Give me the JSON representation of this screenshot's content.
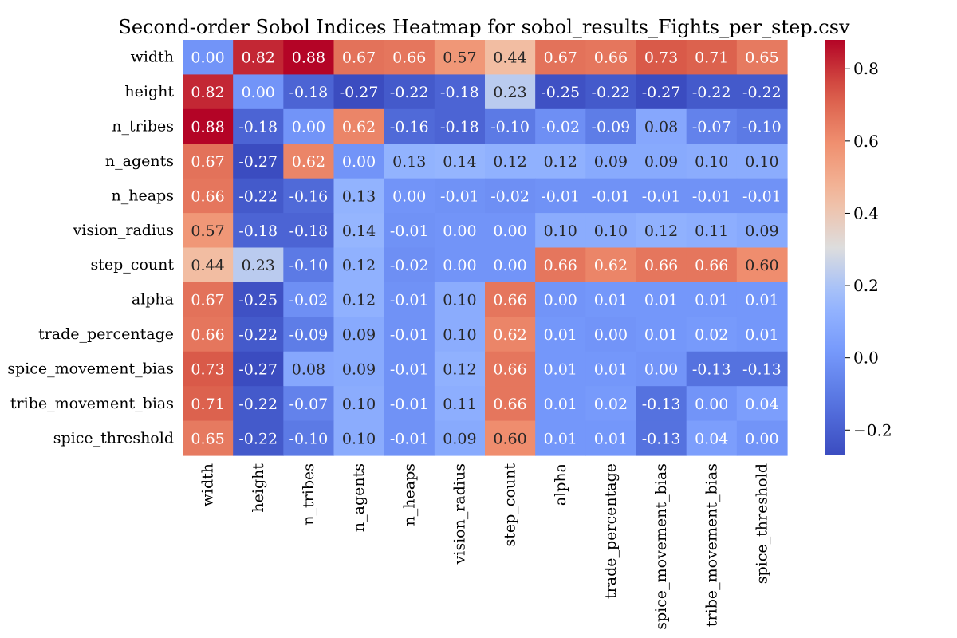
{
  "chart_data": {
    "type": "heatmap",
    "title": "Second-order Sobol Indices Heatmap for sobol_results_Fights_per_step.csv",
    "xlabel": "",
    "ylabel": "",
    "rows": [
      "width",
      "height",
      "n_tribes",
      "n_agents",
      "n_heaps",
      "vision_radius",
      "step_count",
      "alpha",
      "trade_percentage",
      "spice_movement_bias",
      "tribe_movement_bias",
      "spice_threshold"
    ],
    "columns": [
      "width",
      "height",
      "n_tribes",
      "n_agents",
      "n_heaps",
      "vision_radius",
      "step_count",
      "alpha",
      "trade_percentage",
      "spice_movement_bias",
      "tribe_movement_bias",
      "spice_threshold"
    ],
    "values": [
      [
        0.0,
        0.82,
        0.88,
        0.67,
        0.66,
        0.57,
        0.44,
        0.67,
        0.66,
        0.73,
        0.71,
        0.65
      ],
      [
        0.82,
        0.0,
        -0.18,
        -0.27,
        -0.22,
        -0.18,
        0.23,
        -0.25,
        -0.22,
        -0.27,
        -0.22,
        -0.22
      ],
      [
        0.88,
        -0.18,
        0.0,
        0.62,
        -0.16,
        -0.18,
        -0.1,
        -0.02,
        -0.09,
        0.08,
        -0.07,
        -0.1
      ],
      [
        0.67,
        -0.27,
        0.62,
        0.0,
        0.13,
        0.14,
        0.12,
        0.12,
        0.09,
        0.09,
        0.1,
        0.1
      ],
      [
        0.66,
        -0.22,
        -0.16,
        0.13,
        0.0,
        -0.01,
        -0.02,
        -0.01,
        -0.01,
        -0.01,
        -0.01,
        -0.01
      ],
      [
        0.57,
        -0.18,
        -0.18,
        0.14,
        -0.01,
        0.0,
        0.0,
        0.1,
        0.1,
        0.12,
        0.11,
        0.09
      ],
      [
        0.44,
        0.23,
        -0.1,
        0.12,
        -0.02,
        0.0,
        0.0,
        0.66,
        0.62,
        0.66,
        0.66,
        0.6
      ],
      [
        0.67,
        -0.25,
        -0.02,
        0.12,
        -0.01,
        0.1,
        0.66,
        0.0,
        0.01,
        0.01,
        0.01,
        0.01
      ],
      [
        0.66,
        -0.22,
        -0.09,
        0.09,
        -0.01,
        0.1,
        0.62,
        0.01,
        0.0,
        0.01,
        0.02,
        0.01
      ],
      [
        0.73,
        -0.27,
        0.08,
        0.09,
        -0.01,
        0.12,
        0.66,
        0.01,
        0.01,
        0.0,
        -0.13,
        -0.13
      ],
      [
        0.71,
        -0.22,
        -0.07,
        0.1,
        -0.01,
        0.11,
        0.66,
        0.01,
        0.02,
        -0.13,
        0.0,
        0.04
      ],
      [
        0.65,
        -0.22,
        -0.1,
        0.1,
        -0.01,
        0.09,
        0.6,
        0.01,
        0.01,
        -0.13,
        0.04,
        0.0
      ]
    ],
    "colormap": "coolwarm",
    "vmin": -0.27,
    "vmax": 0.88,
    "colorbar_ticks": [
      -0.2,
      0.0,
      0.2,
      0.4,
      0.6,
      0.8
    ],
    "colorbar_tick_labels": [
      "−0.2",
      "0.0",
      "0.2",
      "0.4",
      "0.6",
      "0.8"
    ],
    "annotations": true,
    "legend": "colorbar-right",
    "grid": false
  }
}
